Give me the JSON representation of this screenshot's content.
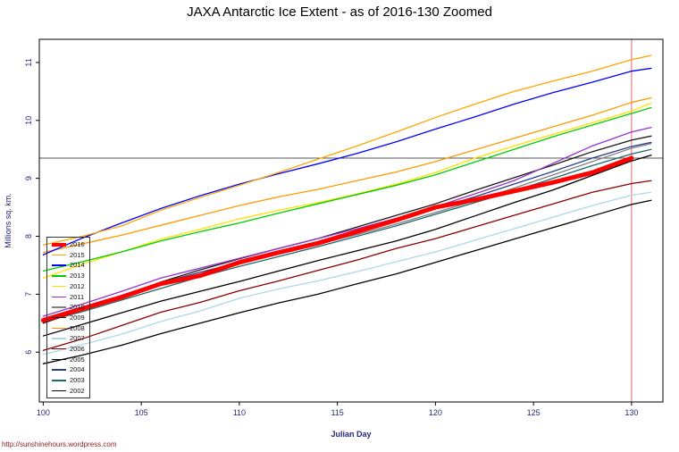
{
  "page": {
    "footer_url": "http://sunshinehours.wordpress.com"
  },
  "chart_data": {
    "type": "line",
    "title": "JAXA Antarctic Ice Extent - as of 2016-130 Zoomed",
    "xlabel": "Julian Day",
    "ylabel": "Millions sq. km.",
    "xlim": [
      99.8,
      131.6
    ],
    "ylim": [
      5.14,
      11.4
    ],
    "x_ticks": [
      100,
      105,
      110,
      115,
      120,
      125,
      130
    ],
    "y_ticks": [
      6,
      7,
      8,
      9,
      10,
      11
    ],
    "grid": false,
    "legend_position": "bottom-left",
    "colors": {
      "axis_text": "#26267f",
      "title": "#000000",
      "footer": "#8B2323",
      "box": "#000000"
    },
    "reference_lines": [
      {
        "orientation": "horizontal",
        "value": 9.35,
        "color": "#555555"
      },
      {
        "orientation": "vertical",
        "value": 130,
        "color": "#e06666"
      }
    ],
    "x": [
      100,
      102,
      104,
      106,
      108,
      110,
      112,
      114,
      116,
      118,
      120,
      122,
      124,
      126,
      128,
      130,
      131
    ],
    "series": [
      {
        "name": "2016",
        "color": "#FF0000",
        "width": 5,
        "values": [
          6.55,
          6.75,
          6.95,
          7.18,
          7.32,
          7.55,
          7.72,
          7.88,
          8.08,
          8.28,
          8.5,
          8.63,
          8.78,
          8.93,
          9.1,
          9.35,
          null
        ]
      },
      {
        "name": "2015",
        "color": "#FFA500",
        "values": [
          7.85,
          8.0,
          8.18,
          8.45,
          8.67,
          8.88,
          9.1,
          9.33,
          9.56,
          9.8,
          10.05,
          10.28,
          10.5,
          10.68,
          10.85,
          11.05,
          11.12
        ]
      },
      {
        "name": "2014",
        "color": "#0000FF",
        "values": [
          7.68,
          7.97,
          8.23,
          8.48,
          8.7,
          8.9,
          9.08,
          9.25,
          9.43,
          9.63,
          9.85,
          10.06,
          10.28,
          10.48,
          10.66,
          10.85,
          10.9
        ]
      },
      {
        "name": "2013",
        "color": "#00CC00",
        "values": [
          7.4,
          7.56,
          7.73,
          7.92,
          8.08,
          8.23,
          8.4,
          8.56,
          8.72,
          8.88,
          9.06,
          9.28,
          9.5,
          9.72,
          9.92,
          10.12,
          10.22
        ]
      },
      {
        "name": "2012",
        "color": "#FFE100",
        "values": [
          7.28,
          7.52,
          7.73,
          7.95,
          8.12,
          8.3,
          8.45,
          8.58,
          8.73,
          8.9,
          9.1,
          9.35,
          9.56,
          9.76,
          9.96,
          10.16,
          10.3
        ]
      },
      {
        "name": "2011",
        "color": "#9932CC",
        "values": [
          6.62,
          6.83,
          7.05,
          7.28,
          7.45,
          7.62,
          7.79,
          7.96,
          8.13,
          8.31,
          8.51,
          8.73,
          8.96,
          9.26,
          9.56,
          9.8,
          9.88
        ]
      },
      {
        "name": "2010",
        "color": "#808080",
        "values": [
          6.55,
          6.76,
          6.96,
          7.18,
          7.35,
          7.52,
          7.7,
          7.86,
          8.03,
          8.21,
          8.41,
          8.61,
          8.83,
          9.06,
          9.29,
          9.52,
          9.6
        ]
      },
      {
        "name": "2009",
        "color": "#1A1A1A",
        "values": [
          6.5,
          6.73,
          6.96,
          7.21,
          7.42,
          7.61,
          7.79,
          7.96,
          8.16,
          8.36,
          8.56,
          8.79,
          9.01,
          9.23,
          9.46,
          9.66,
          9.73
        ]
      },
      {
        "name": "2008",
        "color": "#FF9900",
        "values": [
          7.72,
          7.87,
          8.02,
          8.19,
          8.36,
          8.53,
          8.68,
          8.81,
          8.96,
          9.11,
          9.29,
          9.49,
          9.69,
          9.89,
          10.09,
          10.31,
          10.39
        ]
      },
      {
        "name": "2007",
        "color": "#ADD8E6",
        "values": [
          5.96,
          6.13,
          6.31,
          6.53,
          6.71,
          6.93,
          7.09,
          7.23,
          7.39,
          7.56,
          7.73,
          7.93,
          8.13,
          8.33,
          8.53,
          8.71,
          8.76
        ]
      },
      {
        "name": "2006",
        "color": "#8B0000",
        "values": [
          6.03,
          6.23,
          6.46,
          6.69,
          6.86,
          7.06,
          7.23,
          7.41,
          7.59,
          7.79,
          7.96,
          8.16,
          8.36,
          8.56,
          8.76,
          8.91,
          8.96
        ]
      },
      {
        "name": "2005",
        "color": "#000000",
        "values": [
          6.28,
          6.48,
          6.68,
          6.88,
          7.05,
          7.22,
          7.4,
          7.58,
          7.75,
          7.92,
          8.12,
          8.35,
          8.58,
          8.8,
          9.05,
          9.3,
          9.4
        ]
      },
      {
        "name": "2004",
        "color": "#27408B",
        "values": [
          6.58,
          6.78,
          6.98,
          7.2,
          7.38,
          7.55,
          7.72,
          7.9,
          8.08,
          8.28,
          8.48,
          8.68,
          8.9,
          9.12,
          9.35,
          9.55,
          9.62
        ]
      },
      {
        "name": "2003",
        "color": "#1C6B6B",
        "values": [
          6.52,
          6.7,
          6.9,
          7.1,
          7.3,
          7.48,
          7.65,
          7.82,
          8.0,
          8.18,
          8.38,
          8.58,
          8.78,
          9.0,
          9.22,
          9.42,
          9.5
        ]
      },
      {
        "name": "2002",
        "color": "#000000",
        "values": [
          5.8,
          5.95,
          6.12,
          6.32,
          6.5,
          6.68,
          6.85,
          7.0,
          7.18,
          7.35,
          7.55,
          7.75,
          7.95,
          8.15,
          8.35,
          8.55,
          8.62
        ]
      }
    ]
  }
}
